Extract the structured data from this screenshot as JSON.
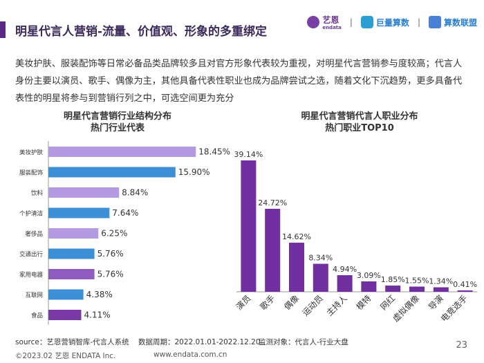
{
  "header": {
    "title": "明星代言人营销-流量、价值观、形象的多重绑定",
    "accent_color": "#5b2a86",
    "brands": [
      {
        "name": "艺恩",
        "sub": "endata"
      },
      {
        "name": "巨量算数"
      },
      {
        "name": "算数联盟"
      }
    ],
    "separator": "|"
  },
  "description": "美妆护肤、服装配饰等日常必备品类品牌较多且对官方形象代表较为重视，对明星代言营销参与度较高；代言人身份主要以演员、歌手、偶像为主，其他具备代表性职业也成为品牌尝试之选，随着文化下沉趋势，更多具备代表性的明星将参与到营销行列之中，可选空间更为充分",
  "left_chart": {
    "title_line1": "明星代言营销行业结构分布",
    "title_line2": "热门行业代表"
  },
  "right_chart": {
    "title_line1": "明星代言营销代言人职业分布",
    "title_line2": "热门职业TOP10"
  },
  "chart_data": [
    {
      "type": "bar",
      "orientation": "horizontal",
      "categories": [
        "美妆护肤",
        "服装配饰",
        "饮料",
        "个护清洁",
        "奢侈品",
        "交通出行",
        "家用电器",
        "互联网",
        "食品"
      ],
      "values": [
        18.45,
        15.9,
        8.84,
        7.64,
        6.25,
        5.76,
        5.76,
        4.38,
        4.11
      ],
      "labels": [
        "18.45%",
        "15.90%",
        "8.84%",
        "7.64%",
        "6.25%",
        "5.76%",
        "5.76%",
        "4.38%",
        "4.11%"
      ],
      "colors": [
        "#b49ae0",
        "#3d8fd6",
        "#b49ae0",
        "#3d8fd6",
        "#b49ae0",
        "#3d8fd6",
        "#8e5bbf",
        "#3d8fd6",
        "#7a3aa6"
      ],
      "xlim": [
        0,
        20
      ],
      "grid": false
    },
    {
      "type": "bar",
      "orientation": "vertical",
      "categories": [
        "演员",
        "歌手",
        "偶像",
        "运动员",
        "主持人",
        "模特",
        "网红",
        "虚拟偶像",
        "导演",
        "电竞选手"
      ],
      "values": [
        39.14,
        24.72,
        14.62,
        8.34,
        4.94,
        3.09,
        1.85,
        1.55,
        1.34,
        0.41
      ],
      "labels": [
        "39.14%",
        "24.72%",
        "14.62%",
        "8.34%",
        "4.94%",
        "3.09%",
        "1.85%",
        "1.55%",
        "1.34%",
        "0.41%"
      ],
      "color": "#7030a0",
      "ylim": [
        0,
        40
      ],
      "grid": false
    }
  ],
  "footer": {
    "source": "source：艺恩营销智库-代言人系统",
    "period": "数据周期：2022.01.01-2022.12.20",
    "target": "监测对象：代言人-行业大盘",
    "copyright": "©2023.02 艺恩 ENDATA Inc.",
    "website": "www.endata.com.cn",
    "page_number": "23"
  }
}
